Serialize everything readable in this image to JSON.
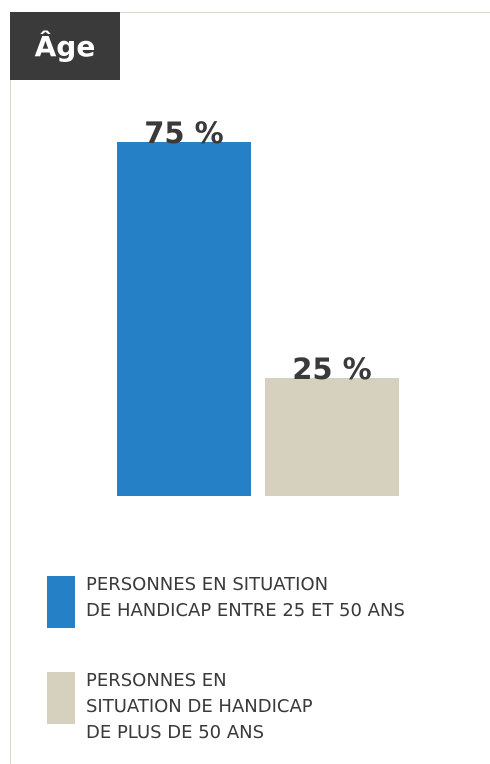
{
  "chart_data": {
    "type": "bar",
    "title": "Âge",
    "categories": [
      "PERSONNES EN SITUATION\nDE HANDICAP ENTRE 25 ET 50 ANS",
      "PERSONNES EN\nSITUATION DE HANDICAP\nDE PLUS DE 50 ANS"
    ],
    "values": [
      75,
      25
    ],
    "value_labels": [
      "75 %",
      "25 %"
    ],
    "colors": [
      "#2680c6",
      "#d6d1bf"
    ],
    "ylim": [
      0,
      75
    ],
    "grid": false,
    "legend_position": "bottom"
  }
}
